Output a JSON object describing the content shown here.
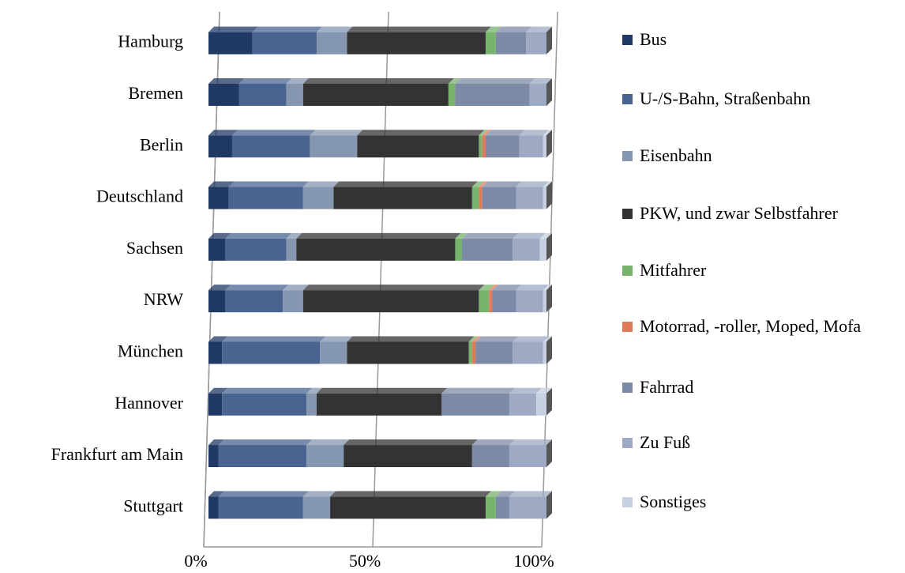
{
  "chart_data": {
    "type": "stacked-bar-horizontal",
    "categories": [
      "Hamburg",
      "Bremen",
      "Berlin",
      "Deutschland",
      "Sachsen",
      "NRW",
      "München",
      "Hannover",
      "Frankfurt am Main",
      "Stuttgart"
    ],
    "series": [
      {
        "name": "Bus",
        "color": "#1f3864",
        "values": [
          13,
          9,
          7,
          6,
          5,
          5,
          4,
          4,
          3,
          3
        ]
      },
      {
        "name": "U-/S-Bahn, Straßenbahn",
        "color": "#4a6491",
        "values": [
          19,
          14,
          23,
          22,
          18,
          17,
          29,
          25,
          26,
          25
        ]
      },
      {
        "name": "Eisenbahn",
        "color": "#8496b0",
        "values": [
          9,
          5,
          14,
          9,
          3,
          6,
          8,
          3,
          11,
          8
        ]
      },
      {
        "name": "PKW, und zwar Selbstfahrer",
        "color": "#333333",
        "values": [
          41,
          43,
          36,
          41,
          47,
          52,
          36,
          37,
          38,
          46
        ]
      },
      {
        "name": "Mitfahrer",
        "color": "#77b36b",
        "values": [
          3,
          2,
          1,
          2,
          2,
          3,
          1,
          0,
          0,
          3
        ]
      },
      {
        "name": "Motorrad, -roller, Moped, Mofa",
        "color": "#e07b5a",
        "values": [
          0,
          0,
          1,
          1,
          0,
          1,
          1,
          0,
          0,
          0
        ]
      },
      {
        "name": "Fahrrad",
        "color": "#7d8aa6",
        "values": [
          9,
          22,
          10,
          10,
          15,
          7,
          11,
          20,
          11,
          4
        ]
      },
      {
        "name": "Zu Fuß",
        "color": "#9eaac3",
        "values": [
          6,
          5,
          7,
          8,
          8,
          8,
          9,
          8,
          11,
          11
        ]
      },
      {
        "name": "Sonstiges",
        "color": "#c5d0e0",
        "values": [
          0,
          0,
          1,
          1,
          2,
          1,
          1,
          3,
          0,
          0
        ]
      }
    ],
    "xlim": [
      0,
      100
    ],
    "xticks": [
      {
        "value": 0,
        "label": "0%"
      },
      {
        "value": 50,
        "label": "50%"
      },
      {
        "value": 100,
        "label": "100%"
      }
    ],
    "grid": true,
    "legend": "right"
  }
}
